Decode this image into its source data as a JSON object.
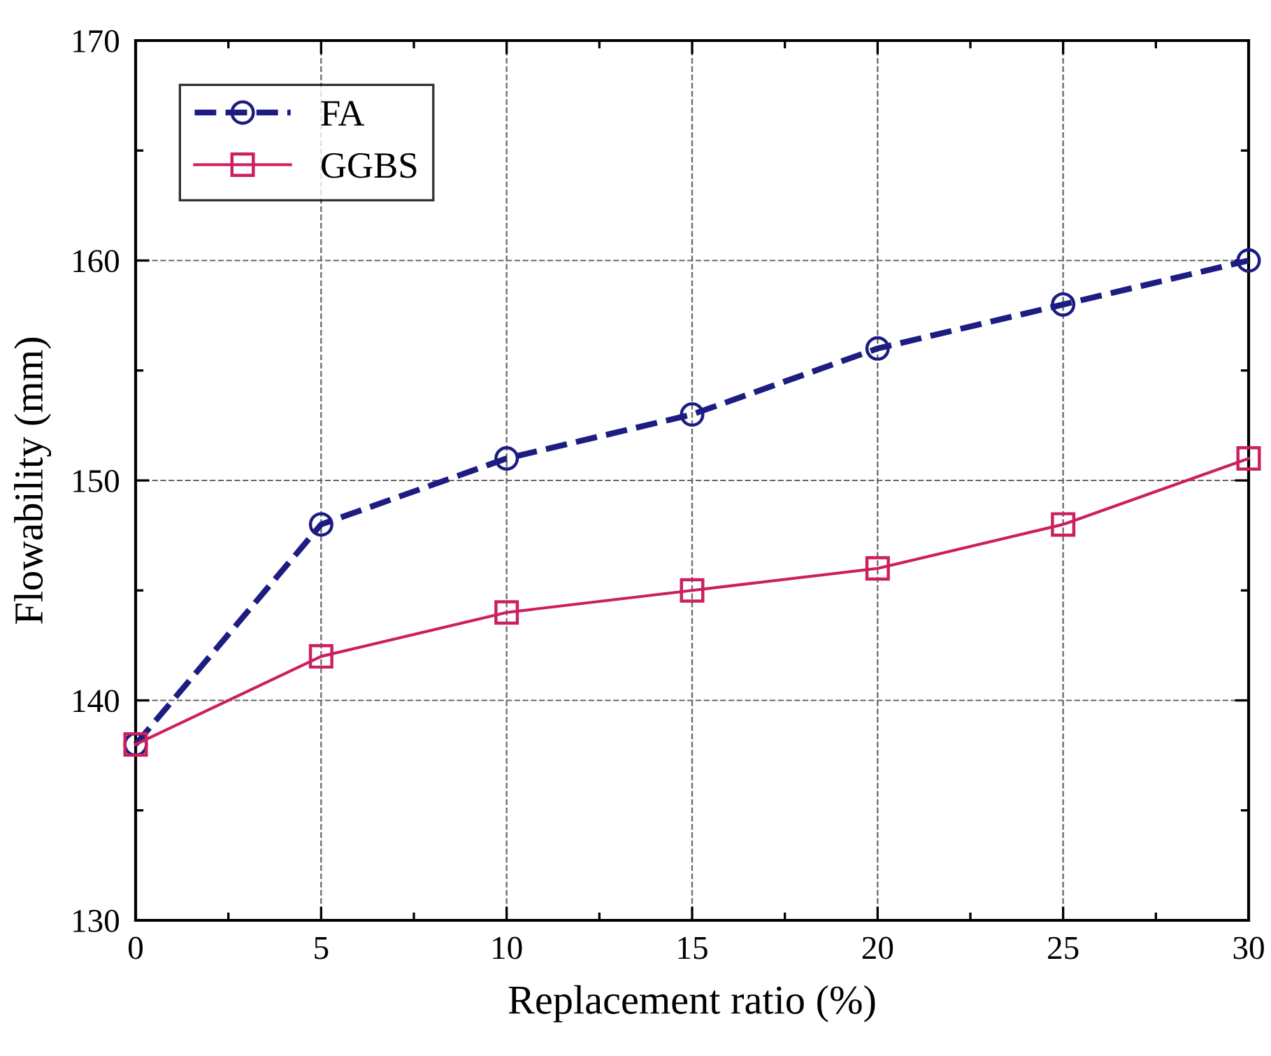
{
  "chart_data": {
    "type": "line",
    "xlabel": "Replacement ratio (%)",
    "ylabel": "Flowability (mm)",
    "x": [
      0,
      5,
      10,
      15,
      20,
      25,
      30
    ],
    "series": [
      {
        "name": "FA",
        "color": "#1c1c82",
        "values": [
          138,
          148,
          151,
          153,
          156,
          158,
          160
        ],
        "marker": "circle",
        "line_style": "dashed"
      },
      {
        "name": "GGBS",
        "color": "#cc1f5f",
        "values": [
          138,
          142,
          144,
          145,
          146,
          148,
          151
        ],
        "marker": "square",
        "line_style": "solid"
      }
    ],
    "xlim": [
      0,
      30
    ],
    "xticks": [
      0,
      5,
      10,
      15,
      20,
      25,
      30
    ],
    "ylim": [
      130,
      170
    ],
    "yticks": [
      130,
      140,
      150,
      160,
      170
    ],
    "grid": true,
    "legend": "top left"
  }
}
